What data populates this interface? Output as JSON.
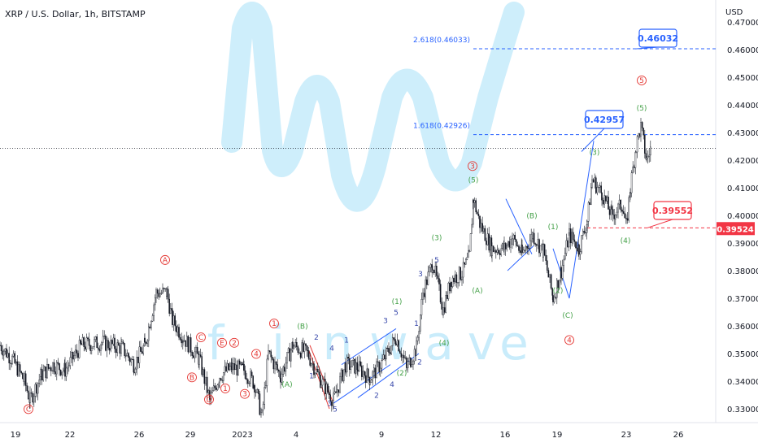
{
  "header": {
    "title": "XRP / U.S. Dollar, 1h, BITSTAMP",
    "currency": "USD"
  },
  "watermark": {
    "letters": [
      "f",
      "i",
      "n",
      "w",
      "a",
      "v",
      "e"
    ],
    "color": "#c9ecfb"
  },
  "colors": {
    "candle": "#131722",
    "fib_line": "#2962ff",
    "stop_line": "#f23645",
    "wave_red": "#e53935",
    "wave_green": "#43a047",
    "wave_blue": "#3949ab",
    "callout_blue": "#2962ff",
    "callout_red": "#f23645",
    "current_price_line": "#131722"
  },
  "chart_data": {
    "type": "candlestick",
    "symbol": "XRP / U.S. Dollar",
    "interval": "1h",
    "exchange": "BITSTAMP",
    "x_ticks": [
      "19",
      "22",
      "26",
      "29",
      "2023",
      "4",
      "9",
      "12",
      "16",
      "19",
      "23",
      "26"
    ],
    "y_ticks": [
      "0.47000",
      "0.46000",
      "0.45000",
      "0.44000",
      "0.43000",
      "0.42000",
      "0.41000",
      "0.40000",
      "0.39000",
      "0.38000",
      "0.37000",
      "0.36000",
      "0.35000",
      "0.34000",
      "0.33000"
    ],
    "ylim": [
      0.325,
      0.478
    ],
    "current_price": 0.4243,
    "fib_levels": [
      {
        "label": "2.618(0.46033)",
        "value": 0.46033
      },
      {
        "label": "1.618(0.42926)",
        "value": 0.42926
      }
    ],
    "targets": [
      {
        "label": "0.46032",
        "value": 0.46032
      },
      {
        "label": "0.42957",
        "value": 0.42957
      }
    ],
    "invalidation": {
      "label": "0.39552",
      "value": 0.39552
    },
    "price_tag": {
      "label": "0.39524",
      "value": 0.39524
    },
    "path_points": [
      {
        "x": 0,
        "y": 0.353
      },
      {
        "x": 15,
        "y": 0.348
      },
      {
        "x": 30,
        "y": 0.34
      },
      {
        "x": 37,
        "y": 0.333
      },
      {
        "x": 50,
        "y": 0.342
      },
      {
        "x": 65,
        "y": 0.346
      },
      {
        "x": 80,
        "y": 0.344
      },
      {
        "x": 100,
        "y": 0.353
      },
      {
        "x": 125,
        "y": 0.354
      },
      {
        "x": 150,
        "y": 0.352
      },
      {
        "x": 165,
        "y": 0.346
      },
      {
        "x": 178,
        "y": 0.353
      },
      {
        "x": 192,
        "y": 0.372
      },
      {
        "x": 205,
        "y": 0.372
      },
      {
        "x": 212,
        "y": 0.362
      },
      {
        "x": 225,
        "y": 0.356
      },
      {
        "x": 245,
        "y": 0.348
      },
      {
        "x": 258,
        "y": 0.333
      },
      {
        "x": 270,
        "y": 0.342
      },
      {
        "x": 285,
        "y": 0.345
      },
      {
        "x": 300,
        "y": 0.344
      },
      {
        "x": 313,
        "y": 0.339
      },
      {
        "x": 322,
        "y": 0.327
      },
      {
        "x": 330,
        "y": 0.35
      },
      {
        "x": 345,
        "y": 0.342
      },
      {
        "x": 360,
        "y": 0.353
      },
      {
        "x": 378,
        "y": 0.35
      },
      {
        "x": 395,
        "y": 0.34
      },
      {
        "x": 410,
        "y": 0.333
      },
      {
        "x": 425,
        "y": 0.346
      },
      {
        "x": 440,
        "y": 0.345
      },
      {
        "x": 455,
        "y": 0.341
      },
      {
        "x": 470,
        "y": 0.347
      },
      {
        "x": 487,
        "y": 0.356
      },
      {
        "x": 500,
        "y": 0.345
      },
      {
        "x": 512,
        "y": 0.352
      },
      {
        "x": 520,
        "y": 0.372
      },
      {
        "x": 532,
        "y": 0.383
      },
      {
        "x": 545,
        "y": 0.366
      },
      {
        "x": 555,
        "y": 0.377
      },
      {
        "x": 568,
        "y": 0.379
      },
      {
        "x": 577,
        "y": 0.385
      },
      {
        "x": 582,
        "y": 0.406
      },
      {
        "x": 590,
        "y": 0.397
      },
      {
        "x": 605,
        "y": 0.388
      },
      {
        "x": 620,
        "y": 0.388
      },
      {
        "x": 630,
        "y": 0.392
      },
      {
        "x": 642,
        "y": 0.386
      },
      {
        "x": 655,
        "y": 0.393
      },
      {
        "x": 668,
        "y": 0.387
      },
      {
        "x": 680,
        "y": 0.37
      },
      {
        "x": 690,
        "y": 0.38
      },
      {
        "x": 700,
        "y": 0.393
      },
      {
        "x": 712,
        "y": 0.388
      },
      {
        "x": 722,
        "y": 0.398
      },
      {
        "x": 728,
        "y": 0.413
      },
      {
        "x": 740,
        "y": 0.408
      },
      {
        "x": 752,
        "y": 0.4
      },
      {
        "x": 765,
        "y": 0.404
      },
      {
        "x": 770,
        "y": 0.396
      },
      {
        "x": 775,
        "y": 0.41
      },
      {
        "x": 782,
        "y": 0.425
      },
      {
        "x": 788,
        "y": 0.432
      },
      {
        "x": 795,
        "y": 0.42
      },
      {
        "x": 800,
        "y": 0.4243
      }
    ],
    "wave_labels_red": [
      {
        "label": "A",
        "x": 203,
        "y": 0.383
      },
      {
        "label": "C",
        "x": 247,
        "y": 0.355
      },
      {
        "label": "E",
        "x": 273,
        "y": 0.353
      },
      {
        "label": "2",
        "x": 288,
        "y": 0.353
      },
      {
        "label": "1",
        "x": 337,
        "y": 0.36
      },
      {
        "label": "4",
        "x": 315,
        "y": 0.349
      },
      {
        "label": "B",
        "x": 236,
        "y": 0.3405
      },
      {
        "label": "1",
        "x": 277,
        "y": 0.3365
      },
      {
        "label": "3",
        "x": 301,
        "y": 0.3345
      },
      {
        "label": "D",
        "x": 257,
        "y": 0.3325
      },
      {
        "label": "C",
        "x": 35,
        "y": 0.329
      },
      {
        "label": "3",
        "x": 581,
        "y": 0.417
      },
      {
        "label": "4",
        "x": 700,
        "y": 0.354
      },
      {
        "label": "5",
        "x": 789,
        "y": 0.448
      }
    ],
    "wave_labels_green": [
      {
        "label": "(B)",
        "x": 372,
        "y": 0.359
      },
      {
        "label": "(A)",
        "x": 353,
        "y": 0.338
      },
      {
        "label": "(1)",
        "x": 488,
        "y": 0.368
      },
      {
        "label": "(2)",
        "x": 494,
        "y": 0.342
      },
      {
        "label": "(3)",
        "x": 537,
        "y": 0.391
      },
      {
        "label": "(4)",
        "x": 546,
        "y": 0.353
      },
      {
        "label": "(5)",
        "x": 582,
        "y": 0.412
      },
      {
        "label": "(A)",
        "x": 587,
        "y": 0.372
      },
      {
        "label": "(B)",
        "x": 654,
        "y": 0.399
      },
      {
        "label": "(C)",
        "x": 698,
        "y": 0.363
      },
      {
        "label": "(1)",
        "x": 680,
        "y": 0.395
      },
      {
        "label": "(2)",
        "x": 686,
        "y": 0.372
      },
      {
        "label": "(3)",
        "x": 731,
        "y": 0.422
      },
      {
        "label": "(4)",
        "x": 769,
        "y": 0.39
      },
      {
        "label": "(5)",
        "x": 789,
        "y": 0.438
      }
    ],
    "wave_labels_blue": [
      {
        "label": "2",
        "x": 389,
        "y": 0.355
      },
      {
        "label": "1",
        "x": 383,
        "y": 0.341
      },
      {
        "label": "4",
        "x": 408,
        "y": 0.351
      },
      {
        "label": "3",
        "x": 405,
        "y": 0.331
      },
      {
        "label": "5",
        "x": 412,
        "y": 0.329
      },
      {
        "label": "1",
        "x": 426,
        "y": 0.354
      },
      {
        "label": "2",
        "x": 463,
        "y": 0.334
      },
      {
        "label": "4",
        "x": 482,
        "y": 0.338
      },
      {
        "label": "3",
        "x": 474,
        "y": 0.361
      },
      {
        "label": "5",
        "x": 487,
        "y": 0.364
      },
      {
        "label": "1",
        "x": 512,
        "y": 0.36
      },
      {
        "label": "2",
        "x": 516,
        "y": 0.346
      },
      {
        "label": "3",
        "x": 517,
        "y": 0.378
      },
      {
        "label": "5",
        "x": 537,
        "y": 0.383
      }
    ]
  }
}
